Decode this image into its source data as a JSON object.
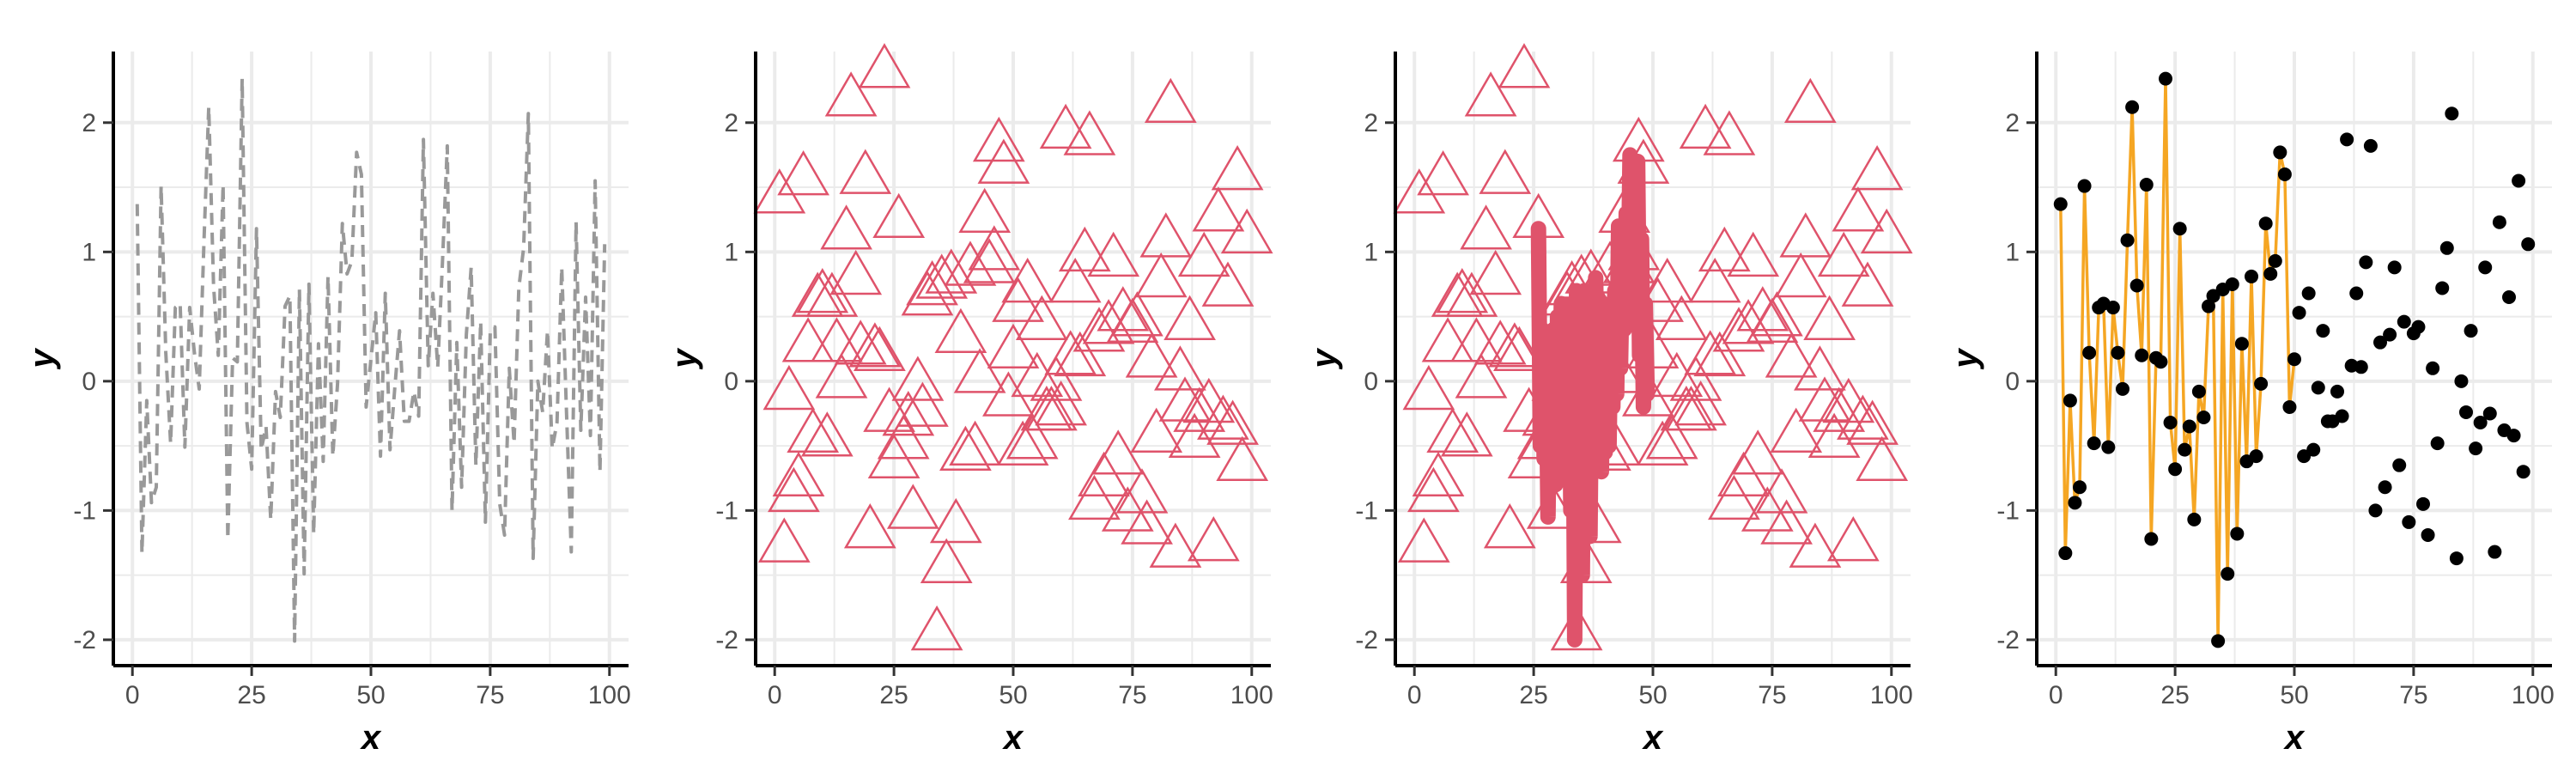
{
  "figure": {
    "background_color": "#ffffff",
    "grid_color": "#ebebeb",
    "axis_color": "#000000",
    "tick_label_color": "#4d4d4d"
  },
  "chart_data": [
    {
      "type": "line",
      "xlabel": "x",
      "ylabel": "y",
      "xlim": [
        -4,
        104
      ],
      "ylim": [
        -2.2,
        2.55
      ],
      "x_ticks": [
        0,
        25,
        50,
        75,
        100
      ],
      "y_ticks": [
        -2,
        -1,
        0,
        1,
        2
      ],
      "x_tick_labels": [
        "0",
        "25",
        "50",
        "75",
        "100"
      ],
      "y_tick_labels": [
        "-2",
        "-1",
        "0",
        "1",
        "2"
      ],
      "grid": true,
      "series": [
        {
          "style": "dashed-line",
          "color": "#999999",
          "dataset": "scatter_points"
        }
      ]
    },
    {
      "type": "scatter",
      "xlabel": "x",
      "ylabel": "y",
      "xlim": [
        -4,
        104
      ],
      "ylim": [
        -2.2,
        2.55
      ],
      "x_ticks": [
        0,
        25,
        50,
        75,
        100
      ],
      "y_ticks": [
        -2,
        -1,
        0,
        1,
        2
      ],
      "x_tick_labels": [
        "0",
        "25",
        "50",
        "75",
        "100"
      ],
      "y_tick_labels": [
        "-2",
        "-1",
        "0",
        "1",
        "2"
      ],
      "grid": true,
      "series": [
        {
          "style": "open-triangle-markers",
          "color": "#df536b",
          "dataset": "triangle_points"
        }
      ]
    },
    {
      "type": "scatter",
      "xlabel": "x",
      "ylabel": "y",
      "xlim": [
        -4,
        104
      ],
      "ylim": [
        -2.2,
        2.55
      ],
      "x_ticks": [
        0,
        25,
        50,
        75,
        100
      ],
      "y_ticks": [
        -2,
        -1,
        0,
        1,
        2
      ],
      "x_tick_labels": [
        "0",
        "25",
        "50",
        "75",
        "100"
      ],
      "y_tick_labels": [
        "-2",
        "-1",
        "0",
        "1",
        "2"
      ],
      "grid": true,
      "series": [
        {
          "style": "open-triangle-markers",
          "color": "#df536b",
          "dataset": "triangle_points"
        },
        {
          "style": "thick-line",
          "color": "#df536b",
          "dataset": "thick_line"
        }
      ]
    },
    {
      "type": "scatter",
      "xlabel": "x",
      "ylabel": "y",
      "xlim": [
        -4,
        104
      ],
      "ylim": [
        -2.2,
        2.55
      ],
      "x_ticks": [
        0,
        25,
        50,
        75,
        100
      ],
      "y_ticks": [
        -2,
        -1,
        0,
        1,
        2
      ],
      "x_tick_labels": [
        "0",
        "25",
        "50",
        "75",
        "100"
      ],
      "y_tick_labels": [
        "-2",
        "-1",
        "0",
        "1",
        "2"
      ],
      "grid": true,
      "series": [
        {
          "style": "line",
          "color": "#f5a623",
          "dataset": "orange_line"
        },
        {
          "style": "filled-dot-markers",
          "color": "#000000",
          "dataset": "scatter_points"
        }
      ]
    }
  ],
  "datasets": {
    "scatter_points": [
      [
        1,
        1.37
      ],
      [
        2,
        -1.33
      ],
      [
        3,
        -0.15
      ],
      [
        4,
        -0.94
      ],
      [
        5,
        -0.82
      ],
      [
        6,
        1.51
      ],
      [
        7,
        0.22
      ],
      [
        8,
        -0.48
      ],
      [
        9,
        0.57
      ],
      [
        10,
        0.6
      ],
      [
        11,
        -0.51
      ],
      [
        12,
        0.57
      ],
      [
        13,
        0.22
      ],
      [
        14,
        -0.06
      ],
      [
        15,
        1.09
      ],
      [
        16,
        2.12
      ],
      [
        17,
        0.74
      ],
      [
        18,
        0.2
      ],
      [
        19,
        1.52
      ],
      [
        20,
        -1.22
      ],
      [
        21,
        0.18
      ],
      [
        22,
        0.15
      ],
      [
        23,
        2.34
      ],
      [
        24,
        -0.32
      ],
      [
        25,
        -0.68
      ],
      [
        26,
        1.18
      ],
      [
        27,
        -0.53
      ],
      [
        28,
        -0.35
      ],
      [
        29,
        -1.07
      ],
      [
        30,
        -0.08
      ],
      [
        31,
        -0.28
      ],
      [
        32,
        0.58
      ],
      [
        33,
        0.66
      ],
      [
        34,
        -2.01
      ],
      [
        35,
        0.71
      ],
      [
        36,
        -1.49
      ],
      [
        37,
        0.75
      ],
      [
        38,
        -1.18
      ],
      [
        39,
        0.29
      ],
      [
        40,
        -0.62
      ],
      [
        41,
        0.81
      ],
      [
        42,
        -0.58
      ],
      [
        43,
        -0.02
      ],
      [
        44,
        1.22
      ],
      [
        45,
        0.83
      ],
      [
        46,
        0.93
      ],
      [
        47,
        1.77
      ],
      [
        48,
        1.6
      ],
      [
        49,
        -0.2
      ],
      [
        50,
        0.17
      ],
      [
        51,
        0.53
      ],
      [
        52,
        -0.58
      ],
      [
        53,
        0.68
      ],
      [
        54,
        -0.53
      ],
      [
        55,
        -0.05
      ],
      [
        56,
        0.39
      ],
      [
        57,
        -0.31
      ],
      [
        58,
        -0.31
      ],
      [
        59,
        -0.08
      ],
      [
        60,
        -0.27
      ],
      [
        61,
        1.87
      ],
      [
        62,
        0.12
      ],
      [
        63,
        0.68
      ],
      [
        64,
        0.11
      ],
      [
        65,
        0.92
      ],
      [
        66,
        1.82
      ],
      [
        67,
        -1.0
      ],
      [
        68,
        0.3
      ],
      [
        69,
        -0.82
      ],
      [
        70,
        0.36
      ],
      [
        71,
        0.88
      ],
      [
        72,
        -0.65
      ],
      [
        73,
        0.46
      ],
      [
        74,
        -1.09
      ],
      [
        75,
        0.37
      ],
      [
        76,
        0.42
      ],
      [
        77,
        -0.95
      ],
      [
        78,
        -1.19
      ],
      [
        79,
        0.1
      ],
      [
        80,
        -0.48
      ],
      [
        81,
        0.72
      ],
      [
        82,
        1.03
      ],
      [
        83,
        2.07
      ],
      [
        84,
        -1.37
      ],
      [
        85,
        0.0
      ],
      [
        86,
        -0.24
      ],
      [
        87,
        0.39
      ],
      [
        88,
        -0.52
      ],
      [
        89,
        -0.32
      ],
      [
        90,
        0.88
      ],
      [
        91,
        -0.25
      ],
      [
        92,
        -1.32
      ],
      [
        93,
        1.23
      ],
      [
        94,
        -0.38
      ],
      [
        95,
        0.65
      ],
      [
        96,
        -0.42
      ],
      [
        97,
        1.55
      ],
      [
        98,
        -0.7
      ],
      [
        99,
        1.06
      ]
    ],
    "triangle_points": [
      [
        1,
        1.43
      ],
      [
        2,
        -1.27
      ],
      [
        3,
        -0.09
      ],
      [
        4,
        -0.88
      ],
      [
        5,
        -0.76
      ],
      [
        6,
        1.57
      ],
      [
        7,
        0.28
      ],
      [
        8,
        -0.42
      ],
      [
        9,
        0.63
      ],
      [
        10,
        0.66
      ],
      [
        11,
        -0.45
      ],
      [
        12,
        0.63
      ],
      [
        13,
        0.28
      ],
      [
        14,
        0.0
      ],
      [
        15,
        1.15
      ],
      [
        16,
        2.18
      ],
      [
        17,
        0.8
      ],
      [
        18,
        0.26
      ],
      [
        19,
        1.58
      ],
      [
        20,
        -1.16
      ],
      [
        21,
        0.24
      ],
      [
        22,
        0.21
      ],
      [
        23,
        2.4
      ],
      [
        24,
        -0.26
      ],
      [
        25,
        -0.62
      ],
      [
        26,
        1.24
      ],
      [
        27,
        -0.47
      ],
      [
        28,
        -0.29
      ],
      [
        29,
        -1.01
      ],
      [
        30,
        -0.02
      ],
      [
        31,
        -0.22
      ],
      [
        32,
        0.64
      ],
      [
        33,
        0.72
      ],
      [
        34,
        -1.95
      ],
      [
        35,
        0.77
      ],
      [
        36,
        -1.43
      ],
      [
        37,
        0.81
      ],
      [
        38,
        -1.12
      ],
      [
        39,
        0.35
      ],
      [
        40,
        -0.56
      ],
      [
        41,
        0.87
      ],
      [
        42,
        -0.52
      ],
      [
        43,
        0.04
      ],
      [
        44,
        1.28
      ],
      [
        45,
        0.89
      ],
      [
        46,
        0.99
      ],
      [
        47,
        1.83
      ],
      [
        48,
        1.66
      ],
      [
        49,
        -0.14
      ],
      [
        50,
        0.23
      ],
      [
        51,
        0.59
      ],
      [
        52,
        -0.52
      ],
      [
        53,
        0.74
      ],
      [
        54,
        -0.47
      ],
      [
        55,
        0.01
      ],
      [
        56,
        0.45
      ],
      [
        57,
        -0.25
      ],
      [
        58,
        -0.25
      ],
      [
        59,
        -0.02
      ],
      [
        60,
        -0.21
      ],
      [
        61,
        1.93
      ],
      [
        62,
        0.18
      ],
      [
        63,
        0.74
      ],
      [
        64,
        0.17
      ],
      [
        65,
        0.98
      ],
      [
        66,
        1.88
      ],
      [
        67,
        -0.94
      ],
      [
        68,
        0.36
      ],
      [
        69,
        -0.76
      ],
      [
        70,
        0.42
      ],
      [
        71,
        0.94
      ],
      [
        72,
        -0.59
      ],
      [
        73,
        0.52
      ],
      [
        74,
        -1.03
      ],
      [
        75,
        0.43
      ],
      [
        76,
        0.48
      ],
      [
        77,
        -0.89
      ],
      [
        78,
        -1.13
      ],
      [
        79,
        0.16
      ],
      [
        80,
        -0.42
      ],
      [
        81,
        0.78
      ],
      [
        82,
        1.09
      ],
      [
        83,
        2.13
      ],
      [
        84,
        -1.31
      ],
      [
        85,
        0.06
      ],
      [
        86,
        -0.18
      ],
      [
        87,
        0.45
      ],
      [
        88,
        -0.46
      ],
      [
        89,
        -0.26
      ],
      [
        90,
        0.94
      ],
      [
        91,
        -0.19
      ],
      [
        92,
        -1.26
      ],
      [
        93,
        1.29
      ],
      [
        94,
        -0.32
      ],
      [
        95,
        0.71
      ],
      [
        96,
        -0.36
      ],
      [
        97,
        1.61
      ],
      [
        98,
        -0.64
      ],
      [
        99,
        1.12
      ]
    ],
    "thick_line": [
      [
        26,
        1.18
      ],
      [
        26.4,
        -0.5
      ],
      [
        26.8,
        0.4
      ],
      [
        27.2,
        -0.6
      ],
      [
        27.6,
        0.2
      ],
      [
        28,
        -1.05
      ],
      [
        28.4,
        0.3
      ],
      [
        28.8,
        -0.3
      ],
      [
        29.2,
        0.4
      ],
      [
        29.6,
        -0.8
      ],
      [
        30,
        0.5
      ],
      [
        30.4,
        -0.2
      ],
      [
        30.8,
        0.6
      ],
      [
        31.2,
        -0.6
      ],
      [
        31.6,
        0.3
      ],
      [
        32,
        -0.5
      ],
      [
        32.4,
        0.5
      ],
      [
        32.8,
        -1.0
      ],
      [
        33.2,
        0.6
      ],
      [
        33.6,
        -2.0
      ],
      [
        34,
        0.7
      ],
      [
        34.4,
        -0.8
      ],
      [
        34.8,
        0.55
      ],
      [
        35.2,
        -1.5
      ],
      [
        35.6,
        0.7
      ],
      [
        36,
        -0.9
      ],
      [
        36.4,
        0.6
      ],
      [
        36.8,
        -1.2
      ],
      [
        37.2,
        0.4
      ],
      [
        37.6,
        -0.6
      ],
      [
        38,
        0.8
      ],
      [
        38.4,
        -0.3
      ],
      [
        38.8,
        0.4
      ],
      [
        39.2,
        -0.7
      ],
      [
        39.6,
        0.6
      ],
      [
        40,
        -0.55
      ],
      [
        40.4,
        0.3
      ],
      [
        40.8,
        -0.5
      ],
      [
        41.2,
        0.5
      ],
      [
        41.6,
        -0.2
      ],
      [
        42,
        0.7
      ],
      [
        42.4,
        -0.1
      ],
      [
        42.8,
        1.2
      ],
      [
        43.2,
        0.1
      ],
      [
        43.6,
        0.9
      ],
      [
        44,
        0.4
      ],
      [
        44.4,
        1.3
      ],
      [
        44.8,
        0.6
      ],
      [
        45.2,
        1.75
      ],
      [
        45.6,
        0.9
      ],
      [
        46,
        1.6
      ],
      [
        46.4,
        0.5
      ],
      [
        46.8,
        1.7
      ],
      [
        47.2,
        0.2
      ],
      [
        47.6,
        1.1
      ],
      [
        48,
        -0.2
      ],
      [
        48.4,
        0.6
      ],
      [
        48.8,
        -0.1
      ]
    ],
    "orange_line": [
      [
        1,
        1.37
      ],
      [
        2,
        -1.33
      ],
      [
        3,
        -0.15
      ],
      [
        4,
        -0.94
      ],
      [
        5,
        -0.82
      ],
      [
        6,
        1.51
      ],
      [
        7,
        0.22
      ],
      [
        8,
        -0.48
      ],
      [
        9,
        0.57
      ],
      [
        10,
        0.6
      ],
      [
        11,
        -0.51
      ],
      [
        12,
        0.57
      ],
      [
        13,
        0.22
      ],
      [
        14,
        -0.06
      ],
      [
        15,
        1.09
      ],
      [
        16,
        2.12
      ],
      [
        17,
        0.74
      ],
      [
        18,
        0.2
      ],
      [
        19,
        1.52
      ],
      [
        20,
        -1.22
      ],
      [
        21,
        0.18
      ],
      [
        22,
        0.15
      ],
      [
        23,
        2.34
      ],
      [
        24,
        -0.32
      ],
      [
        25,
        -0.68
      ],
      [
        26,
        1.18
      ],
      [
        27,
        -0.53
      ],
      [
        28,
        -0.35
      ],
      [
        29,
        -1.07
      ],
      [
        30,
        -0.08
      ],
      [
        31,
        -0.28
      ],
      [
        32,
        0.58
      ],
      [
        33,
        0.66
      ],
      [
        34,
        -2.01
      ],
      [
        35,
        0.71
      ],
      [
        36,
        -1.49
      ],
      [
        37,
        0.75
      ],
      [
        38,
        -1.18
      ],
      [
        39,
        0.29
      ],
      [
        40,
        -0.62
      ],
      [
        41,
        0.81
      ],
      [
        42,
        -0.58
      ],
      [
        43,
        -0.02
      ],
      [
        44,
        1.22
      ],
      [
        45,
        0.83
      ],
      [
        46,
        0.93
      ],
      [
        47,
        1.77
      ],
      [
        48,
        1.6
      ],
      [
        49,
        -0.2
      ],
      [
        50,
        0.17
      ]
    ]
  }
}
